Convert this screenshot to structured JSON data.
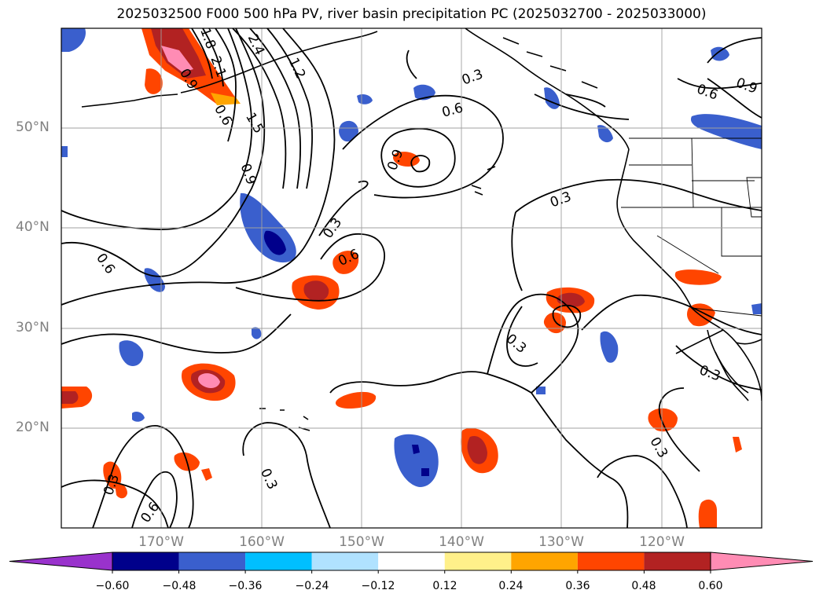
{
  "title": "2025032500 F000 500 hPa PV, river basin precipitation PC (2025032700 - 2025033000)",
  "map": {
    "lat_ticks": [
      "50°N",
      "40°N",
      "30°N",
      "20°N"
    ],
    "lon_ticks": [
      "170°W",
      "160°W",
      "150°W",
      "140°W",
      "130°W",
      "120°W"
    ],
    "contour_labels": [
      "0.3",
      "0.6",
      "0.9",
      "1.2",
      "1.5",
      "1.8",
      "2.1",
      "2.4"
    ]
  },
  "colorbar": {
    "labels": [
      "−0.60",
      "−0.48",
      "−0.36",
      "−0.24",
      "−0.12",
      "0.12",
      "0.24",
      "0.36",
      "0.48",
      "0.60"
    ],
    "colors": [
      "#9932cc",
      "#00008b",
      "#3a5fcd",
      "#00bfff",
      "#b0e2ff",
      "#ffffff",
      "#fff08a",
      "#ffa500",
      "#ff4500",
      "#b22222",
      "#ff8cb4"
    ]
  }
}
